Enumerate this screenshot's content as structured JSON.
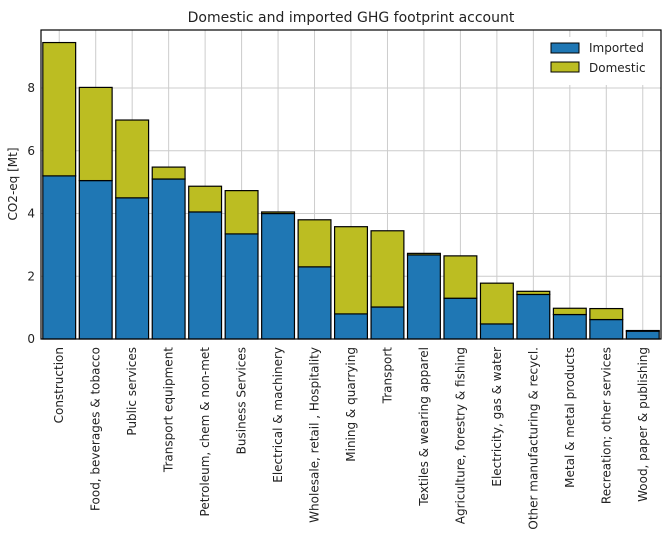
{
  "chart_data": {
    "type": "bar",
    "stacked": true,
    "title": "Domestic and imported GHG footprint account",
    "xlabel": "",
    "ylabel": "CO2-eq [Mt]",
    "ylim": [
      0,
      9.85
    ],
    "yticks": [
      "0",
      "2",
      "4",
      "6",
      "8"
    ],
    "grid": true,
    "legend_position": "top-right",
    "categories": [
      "Construction",
      "Food, beverages & tobacco",
      "Public services",
      "Transport equipment",
      "Petroleum, chem & non-met",
      "Business Services",
      "Electrical & machinery",
      "Wholesale, retail , Hospitality",
      "Mining & quarrying",
      "Transport",
      "Textiles & wearing apparel",
      "Agriculture, forestry & fishing",
      "Electricity, gas & water",
      "Other manufacturing & recycl.",
      "Metal & metal products",
      "Recreation; other services",
      "Wood, paper & publishing"
    ],
    "series": [
      {
        "name": "Imported",
        "color": "#1f77b4",
        "values": [
          5.2,
          5.05,
          4.5,
          5.1,
          4.05,
          3.35,
          4.0,
          2.3,
          0.8,
          1.02,
          2.68,
          1.3,
          0.48,
          1.42,
          0.78,
          0.62,
          0.25
        ]
      },
      {
        "name": "Domestic",
        "color": "#bcbd22",
        "values": [
          4.25,
          2.97,
          2.48,
          0.38,
          0.82,
          1.38,
          0.05,
          1.5,
          2.78,
          2.43,
          0.05,
          1.35,
          1.3,
          0.1,
          0.2,
          0.35,
          0.02
        ]
      }
    ]
  }
}
